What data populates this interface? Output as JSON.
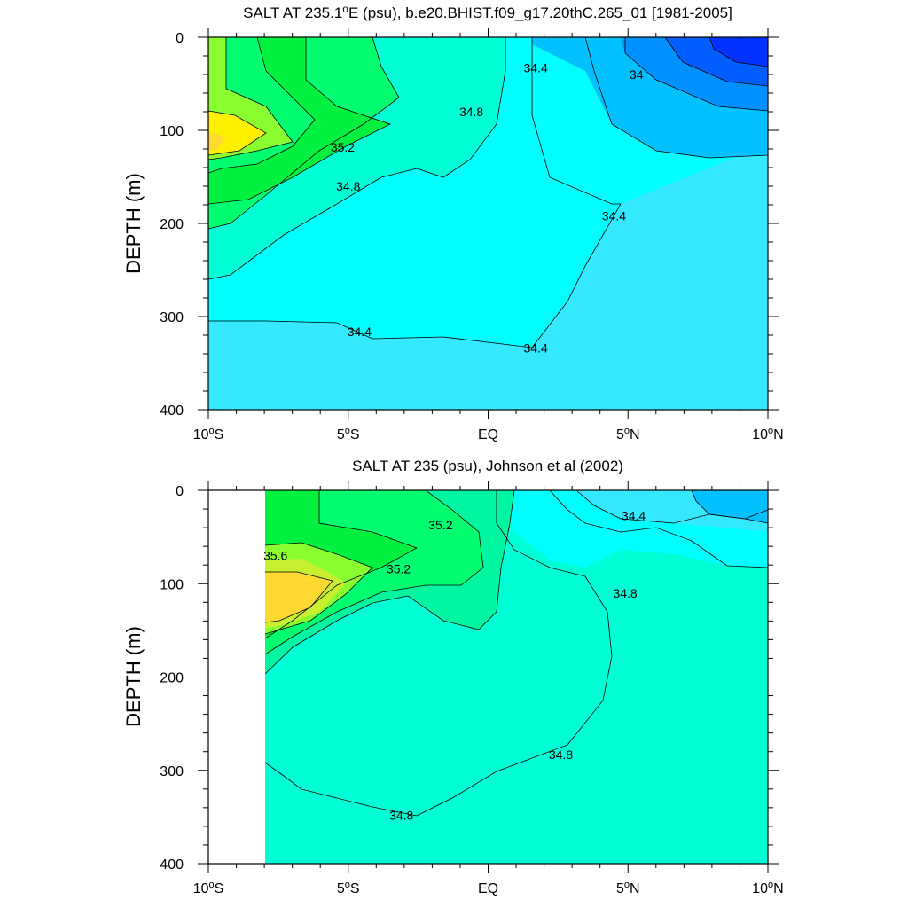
{
  "colors": {
    "s33_6": "#0033ff",
    "s33_8": "#005dff",
    "s34_0": "#0090ff",
    "s34_2": "#00c0ff",
    "s34_4": "#33e8ff",
    "s34_6": "#00ffff",
    "s34_8": "#00ffd5",
    "s35_0": "#00f5a0",
    "s35_2": "#00ff70",
    "s35_4": "#00f040",
    "s35_6": "#8aff30",
    "s35_8": "#c8f030",
    "s36_0": "#fff000",
    "s36_2": "#ffd830"
  },
  "chart_data": [
    {
      "type": "contour",
      "title": "SALT AT 235.1°E (psu), b.e20.BHIST.f09_g17.20thC.265_01 [1981-2005]",
      "title_parts": {
        "pre": "SALT AT 235.1",
        "sup": "o",
        "post": "E (psu), b.e20.BHIST.f09_g17.20thC.265_01 [1981-2005]"
      },
      "ylabel": "DEPTH (m)",
      "xlim": [
        -10,
        10
      ],
      "ylim": [
        400,
        0
      ],
      "x_ticks": [
        -10,
        -5,
        0,
        5,
        10
      ],
      "y_ticks": [
        0,
        100,
        200,
        300,
        400
      ],
      "contour_labels": [
        {
          "text": "34.4",
          "x": 1.7,
          "y": 33
        },
        {
          "text": "34",
          "x": 5.3,
          "y": 40
        },
        {
          "text": "34.8",
          "x": -0.6,
          "y": 80
        },
        {
          "text": "35.2",
          "x": -5.2,
          "y": 118
        },
        {
          "text": "34.8",
          "x": -5.0,
          "y": 160
        },
        {
          "text": "34.4",
          "x": 4.5,
          "y": 192
        },
        {
          "text": "34.4",
          "x": -4.6,
          "y": 316
        },
        {
          "text": "34.4",
          "x": 1.7,
          "y": 334
        }
      ]
    },
    {
      "type": "contour",
      "title": "SALT AT 235 (psu), Johnson et al (2002)",
      "ylabel": "DEPTH (m)",
      "xlim": [
        -10,
        10
      ],
      "ylim": [
        400,
        0
      ],
      "x_ticks": [
        -10,
        -5,
        0,
        5,
        10
      ],
      "y_ticks": [
        0,
        100,
        200,
        300,
        400
      ],
      "contour_labels": [
        {
          "text": "35.2",
          "x": -1.7,
          "y": 37
        },
        {
          "text": "34.4",
          "x": 5.2,
          "y": 27
        },
        {
          "text": "35.6",
          "x": -7.6,
          "y": 70
        },
        {
          "text": "35.2",
          "x": -3.2,
          "y": 84
        },
        {
          "text": "34.8",
          "x": 4.9,
          "y": 110
        },
        {
          "text": "34.8",
          "x": 2.6,
          "y": 283
        },
        {
          "text": "34.8",
          "x": -3.1,
          "y": 348
        }
      ]
    }
  ],
  "x_tick_labels": [
    {
      "num": "10",
      "sup": "o",
      "hem": "S"
    },
    {
      "num": "5",
      "sup": "o",
      "hem": "S"
    },
    {
      "num": "EQ",
      "sup": "",
      "hem": ""
    },
    {
      "num": "5",
      "sup": "o",
      "hem": "N"
    },
    {
      "num": "10",
      "sup": "o",
      "hem": "N"
    }
  ]
}
